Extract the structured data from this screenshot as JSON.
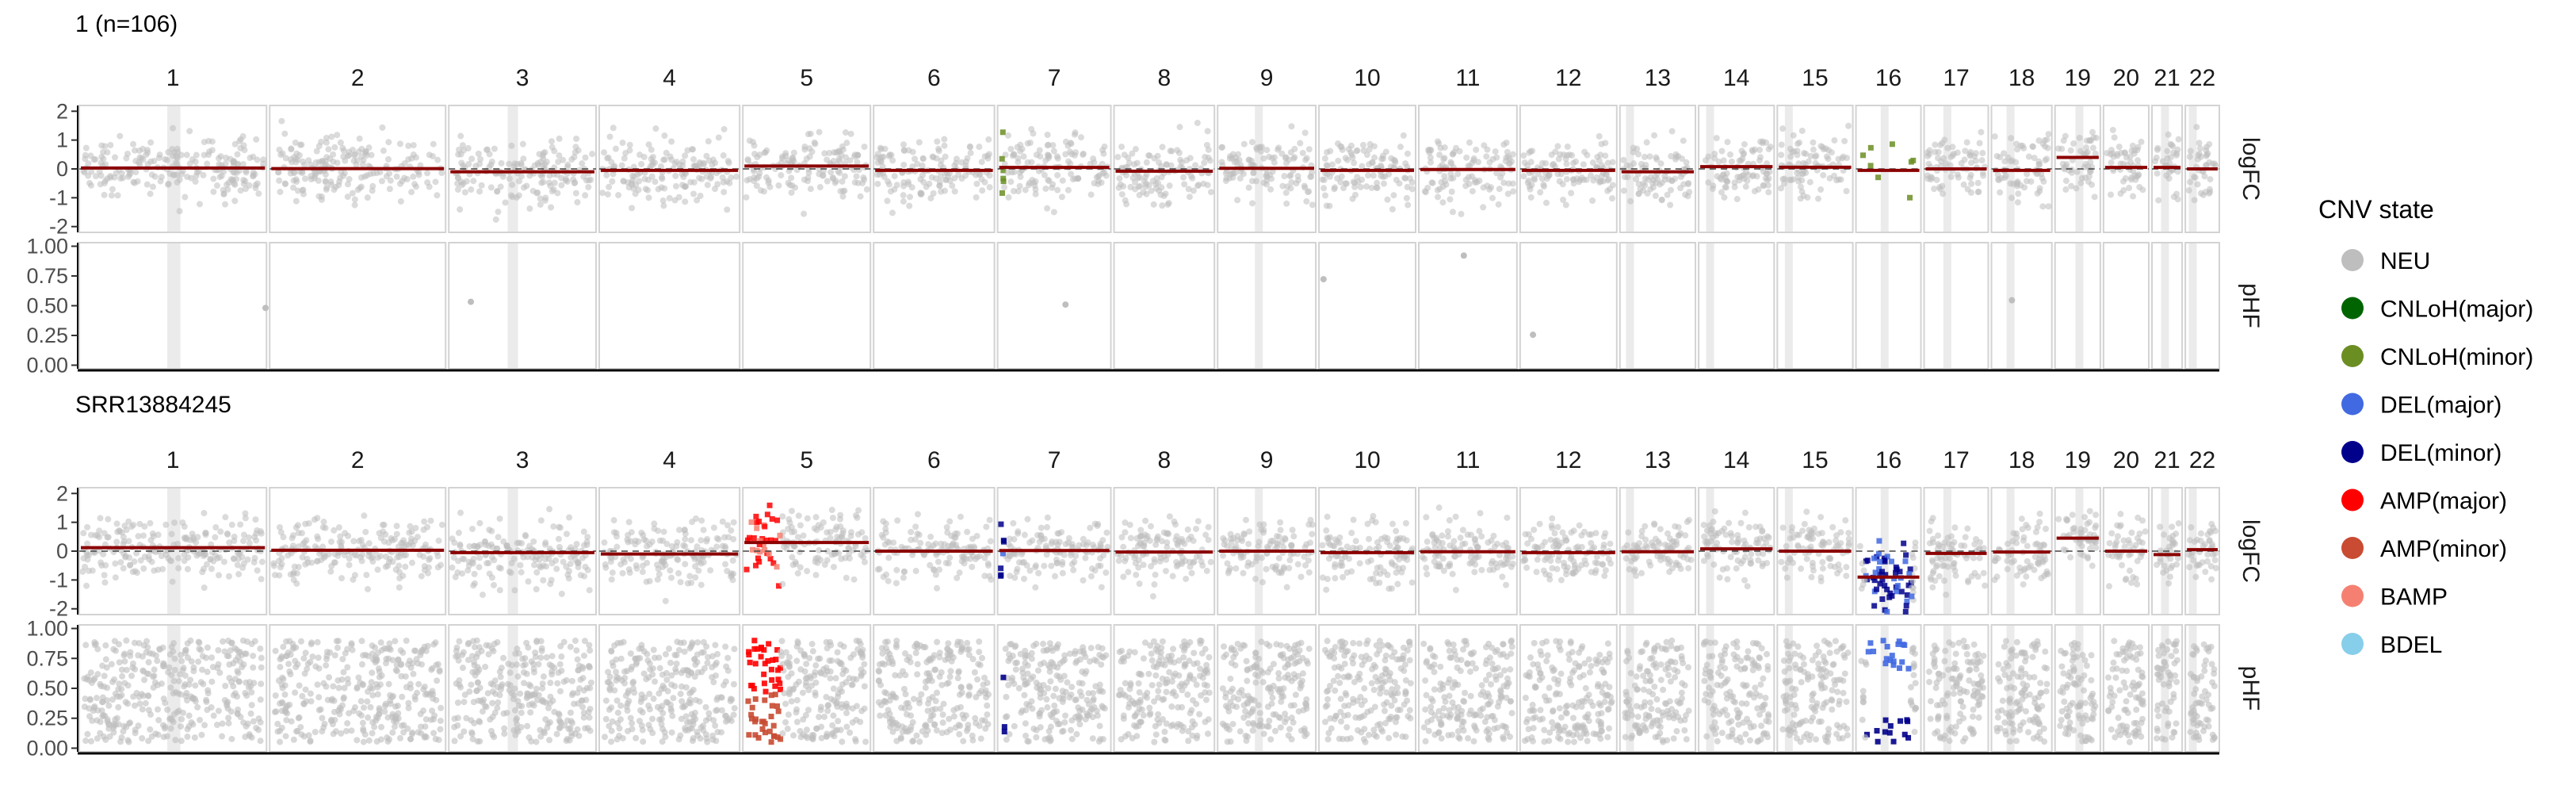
{
  "colors": {
    "NEU": "#BEBEBE",
    "CNLoH(major)": "#006400",
    "CNLoH(minor)": "#6B8E23",
    "DEL(major)": "#4169E1",
    "DEL(minor)": "#00008B",
    "AMP(major)": "#FF0000",
    "AMP(minor)": "#C84B32",
    "BAMP": "#F58071",
    "BDEL": "#87CEEB",
    "segment": "#8B0000",
    "panel_border": "#D3D3D3",
    "shade": "#EBEBEB"
  },
  "legend": {
    "title": "CNV state",
    "items": [
      "NEU",
      "CNLoH(major)",
      "CNLoH(minor)",
      "DEL(major)",
      "DEL(minor)",
      "AMP(major)",
      "AMP(minor)",
      "BAMP",
      "BDEL"
    ]
  },
  "chart_data": [
    {
      "type": "scatter",
      "title": "1 (n=106)",
      "chromosomes": [
        "1",
        "2",
        "3",
        "4",
        "5",
        "6",
        "7",
        "8",
        "9",
        "10",
        "11",
        "12",
        "13",
        "14",
        "15",
        "16",
        "17",
        "18",
        "19",
        "20",
        "21",
        "22"
      ],
      "panels": [
        {
          "strip": "logFC",
          "yticks": [
            2,
            1,
            0,
            -1,
            -2
          ],
          "ylim": [
            -2.2,
            2.2
          ]
        },
        {
          "strip": "pHF",
          "yticks": [
            "1.00",
            "0.75",
            "0.50",
            "0.25",
            "0.00"
          ],
          "ylim": [
            -0.03,
            1.03
          ]
        }
      ],
      "segments_logFC": [
        0.03,
        0.01,
        -0.1,
        -0.05,
        0.1,
        -0.05,
        0.05,
        -0.08,
        0.02,
        -0.05,
        -0.02,
        -0.05,
        -0.1,
        0.08,
        0.06,
        -0.05,
        0.0,
        -0.05,
        0.4,
        0.05,
        0.05,
        0.0
      ],
      "highlights": [
        {
          "chrom": "7",
          "state": "CNLoH(minor)",
          "note": "logFC points at chromosome start"
        },
        {
          "chrom": "16",
          "state": "CNLoH(minor)",
          "note": "sparse logFC points"
        }
      ],
      "phf_mode": "sparse"
    },
    {
      "type": "scatter",
      "title": "SRR13884245",
      "chromosomes": [
        "1",
        "2",
        "3",
        "4",
        "5",
        "6",
        "7",
        "8",
        "9",
        "10",
        "11",
        "12",
        "13",
        "14",
        "15",
        "16",
        "17",
        "18",
        "19",
        "20",
        "21",
        "22"
      ],
      "panels": [
        {
          "strip": "logFC",
          "yticks": [
            2,
            1,
            0,
            -1,
            -2
          ],
          "ylim": [
            -2.2,
            2.2
          ]
        },
        {
          "strip": "pHF",
          "yticks": [
            "1.00",
            "0.75",
            "0.50",
            "0.25",
            "0.00"
          ],
          "ylim": [
            -0.03,
            1.03
          ]
        }
      ],
      "segments_logFC": [
        0.12,
        0.03,
        -0.05,
        -0.1,
        0.3,
        0.0,
        0.02,
        -0.03,
        0.0,
        -0.05,
        -0.02,
        -0.05,
        -0.02,
        0.08,
        0.0,
        -0.9,
        -0.08,
        -0.03,
        0.45,
        0.0,
        -0.12,
        0.05
      ],
      "highlights": [
        {
          "chrom": "5",
          "state": "AMP(major)",
          "note": "amplified p-arm"
        },
        {
          "chrom": "7",
          "state": "DEL(minor)",
          "note": "deletion at chromosome start"
        },
        {
          "chrom": "16",
          "state": "DEL(minor)",
          "note": "deleted chromosome"
        }
      ],
      "phf_mode": "dense"
    }
  ]
}
